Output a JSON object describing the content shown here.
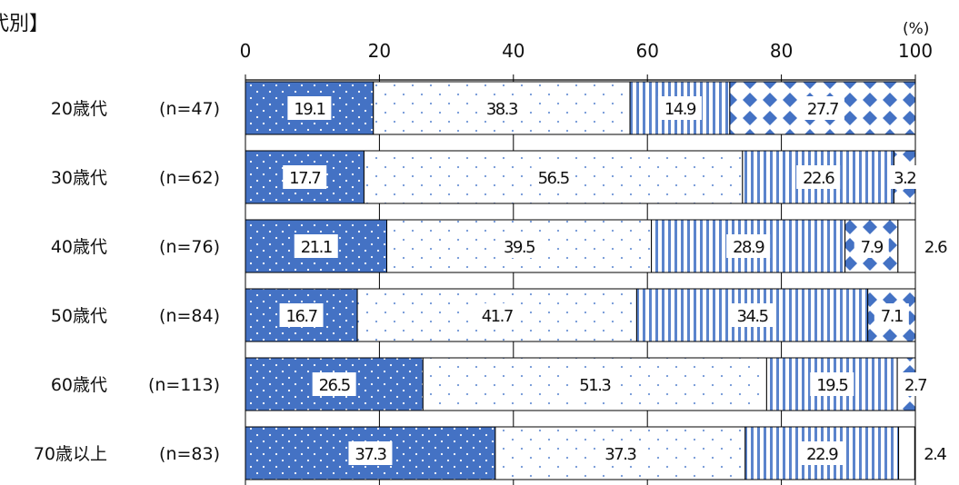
{
  "chart_data": {
    "type": "bar",
    "orientation": "horizontal",
    "stacked": true,
    "title": "代別】",
    "unit": "(%)",
    "xlim": [
      0,
      100
    ],
    "x_ticks": [
      "0",
      "20",
      "40",
      "60",
      "80",
      "100"
    ],
    "categories": [
      "20歳代",
      "30歳代",
      "40歳代",
      "50歳代",
      "60歳代",
      "70歳以上"
    ],
    "n_labels": [
      "(n=47)",
      "(n=62)",
      "(n=76)",
      "(n=84)",
      "(n=113)",
      "(n=83)"
    ],
    "series": [
      {
        "values": [
          19.1,
          17.7,
          21.1,
          16.7,
          26.5,
          37.3
        ],
        "color": "#4472c4"
      },
      {
        "values": [
          38.3,
          56.5,
          39.5,
          41.7,
          51.3,
          37.3
        ],
        "color": "#ffffff"
      },
      {
        "values": [
          14.9,
          22.6,
          28.9,
          34.5,
          19.5,
          22.9
        ],
        "color": "#4472c4"
      },
      {
        "values": [
          27.7,
          3.2,
          7.9,
          7.1,
          2.7,
          0
        ],
        "color": "#4472c4"
      },
      {
        "values": [
          0,
          0,
          2.6,
          0,
          0,
          2.4
        ],
        "color": "#ffffff"
      }
    ],
    "grid": true,
    "legend": "none"
  }
}
